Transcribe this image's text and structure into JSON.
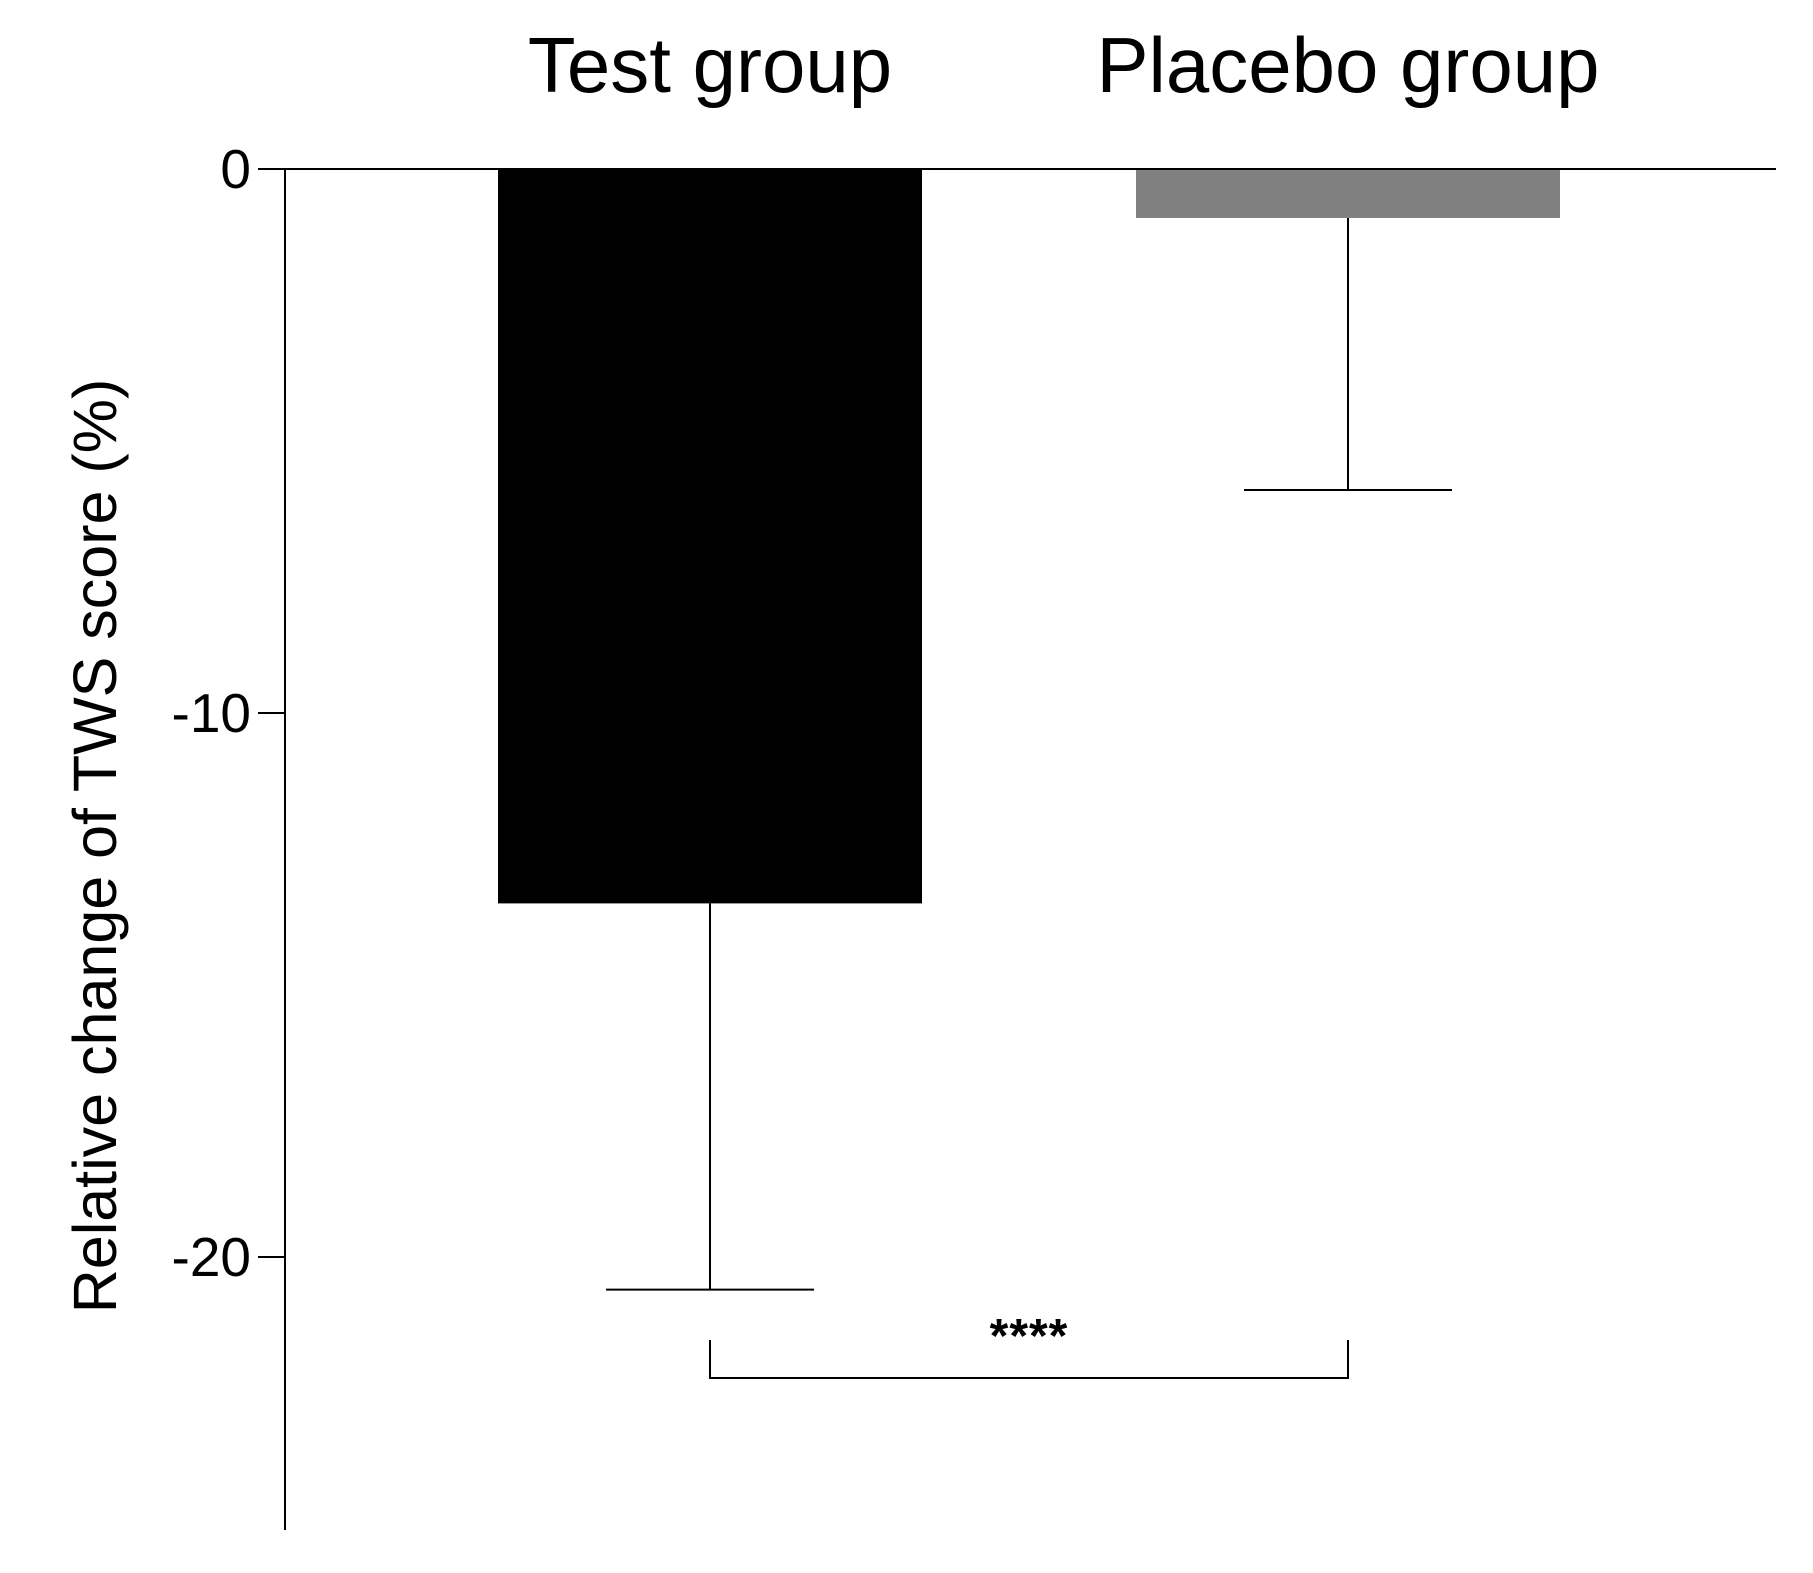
{
  "chart_data": {
    "type": "bar",
    "categories": [
      "Test group",
      "Placebo group"
    ],
    "values": [
      -13.5,
      -0.9
    ],
    "error_bars": [
      7.1,
      5.0
    ],
    "error_direction": "down",
    "colors": [
      "#000000",
      "#808080"
    ],
    "title": "",
    "xlabel": "",
    "ylabel": "Relative change of TWS score (%)",
    "ylim": [
      -25,
      0
    ],
    "yticks": [
      0,
      -10,
      -20
    ],
    "ytick_labels": [
      "0",
      "-10",
      "-20"
    ],
    "category_axis_position": "top",
    "grid": false,
    "legend": "none",
    "significance": {
      "from": "Test group",
      "to": "Placebo group",
      "label": "****"
    }
  }
}
